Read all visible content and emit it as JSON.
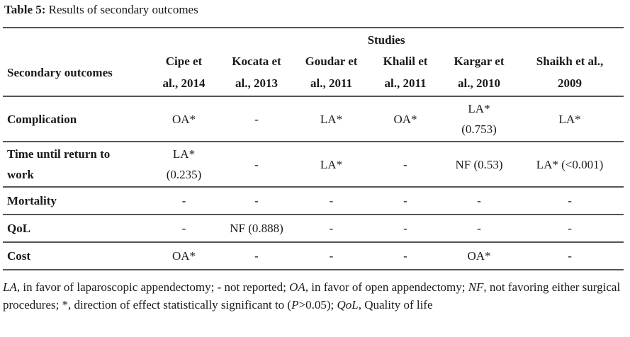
{
  "caption": {
    "label": "Table 5:",
    "text": " Results of secondary outcomes"
  },
  "table": {
    "group_header": "Studies",
    "first_header": "Secondary outcomes",
    "columns": [
      {
        "l1": "Cipe et",
        "l2": "al., 2014"
      },
      {
        "l1": "Kocata et",
        "l2": "al., 2013"
      },
      {
        "l1": "Goudar et",
        "l2": "al., 2011"
      },
      {
        "l1": "Khalil et",
        "l2": "al., 2011"
      },
      {
        "l1": "Kargar et",
        "l2": "al., 2010"
      },
      {
        "l1": "Shaikh et al.,",
        "l2": "2009"
      }
    ],
    "rows": [
      {
        "l1": "Complication",
        "l2": "",
        "cells": [
          [
            "OA*"
          ],
          [
            "-"
          ],
          [
            "LA*"
          ],
          [
            "OA*"
          ],
          [
            "LA*",
            "(0.753)"
          ],
          [
            "LA*"
          ]
        ]
      },
      {
        "l1": "Time until return to",
        "l2": "work",
        "cells": [
          [
            "LA*",
            "(0.235)"
          ],
          [
            "-"
          ],
          [
            "LA*"
          ],
          [
            "-"
          ],
          [
            "NF (0.53)"
          ],
          [
            "LA* (<0.001)"
          ]
        ]
      },
      {
        "l1": "Mortality",
        "l2": "",
        "cells": [
          [
            "-"
          ],
          [
            "-"
          ],
          [
            "-"
          ],
          [
            "-"
          ],
          [
            "-"
          ],
          [
            "-"
          ]
        ]
      },
      {
        "l1": "QoL",
        "l2": "",
        "cells": [
          [
            "-"
          ],
          [
            "NF (0.888)"
          ],
          [
            "-"
          ],
          [
            "-"
          ],
          [
            "-"
          ],
          [
            "-"
          ]
        ]
      },
      {
        "l1": "Cost",
        "l2": "",
        "cells": [
          [
            "OA*"
          ],
          [
            "-"
          ],
          [
            "-"
          ],
          [
            "-"
          ],
          [
            "OA*"
          ],
          [
            "-"
          ]
        ]
      }
    ]
  },
  "footnote": {
    "t1": "LA",
    "t2": ", in favor of laparoscopic appendectomy; - not reported; ",
    "t3": "OA",
    "t4": ", in favor of open appendectomy; ",
    "t5": "NF",
    "t6": ", not favoring either surgical procedures; *, direction of effect statistically significant to (",
    "t7": "P",
    "t8": ">0.05); ",
    "t9": "QoL",
    "t10": ", Quality of life"
  }
}
